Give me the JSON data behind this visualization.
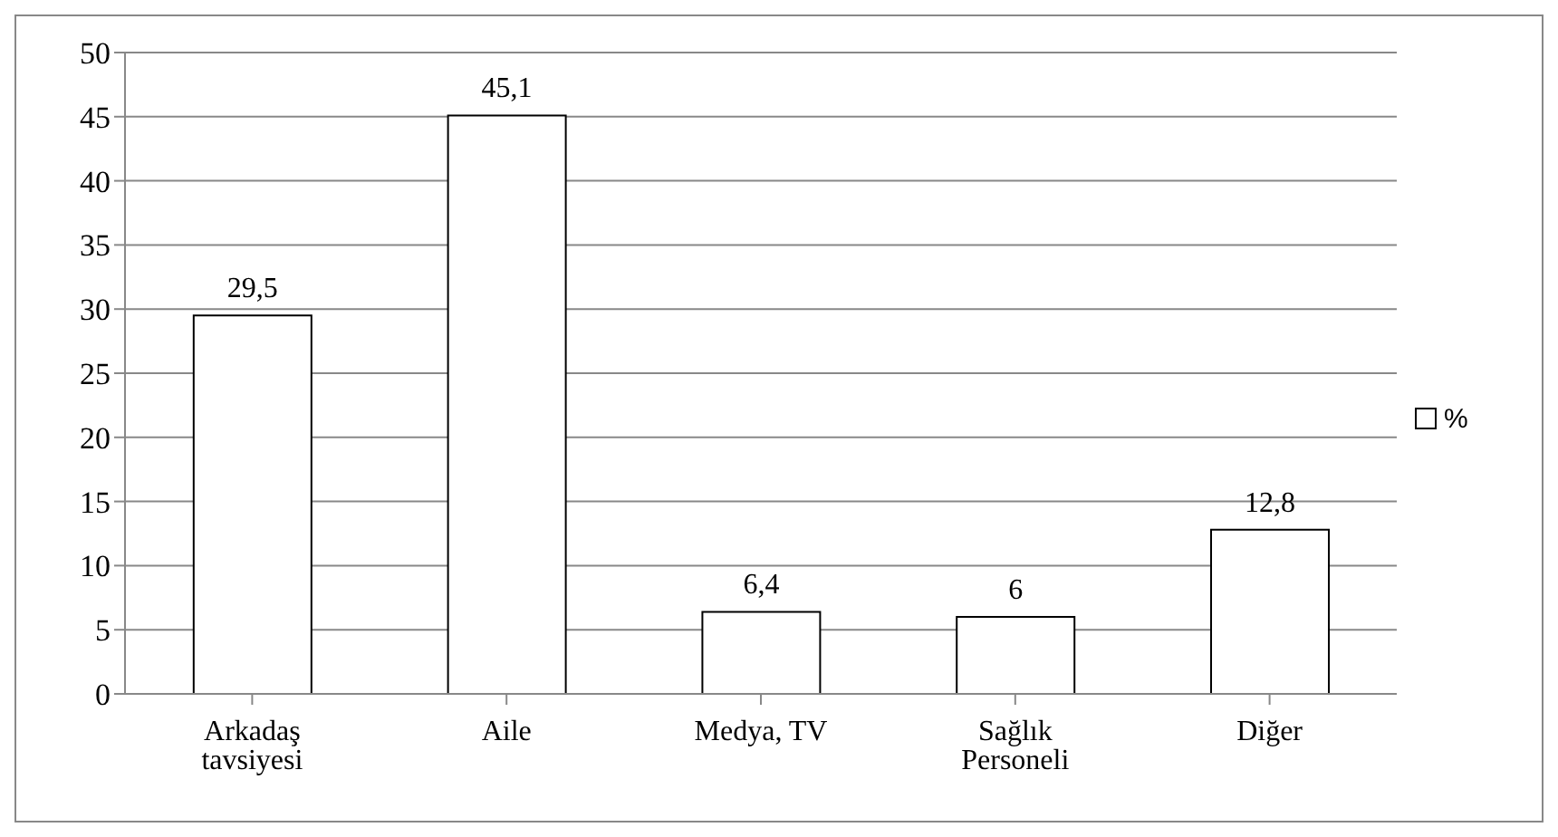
{
  "chart_data": {
    "type": "bar",
    "categories": [
      "Arkadaş tavsiyesi",
      "Aile",
      "Medya, TV",
      "Sağlık Personeli",
      "Diğer"
    ],
    "series": [
      {
        "name": "%",
        "color": "#ffffff",
        "values": [
          29.5,
          45.1,
          6.4,
          6,
          12.8
        ],
        "value_labels": [
          "29,5",
          "45,1",
          "6,4",
          "6",
          "12,8"
        ]
      }
    ],
    "ylim": [
      0,
      50
    ],
    "yticks": [
      0,
      5,
      10,
      15,
      20,
      25,
      30,
      35,
      40,
      45,
      50
    ],
    "grid": "y",
    "legend": "right"
  }
}
